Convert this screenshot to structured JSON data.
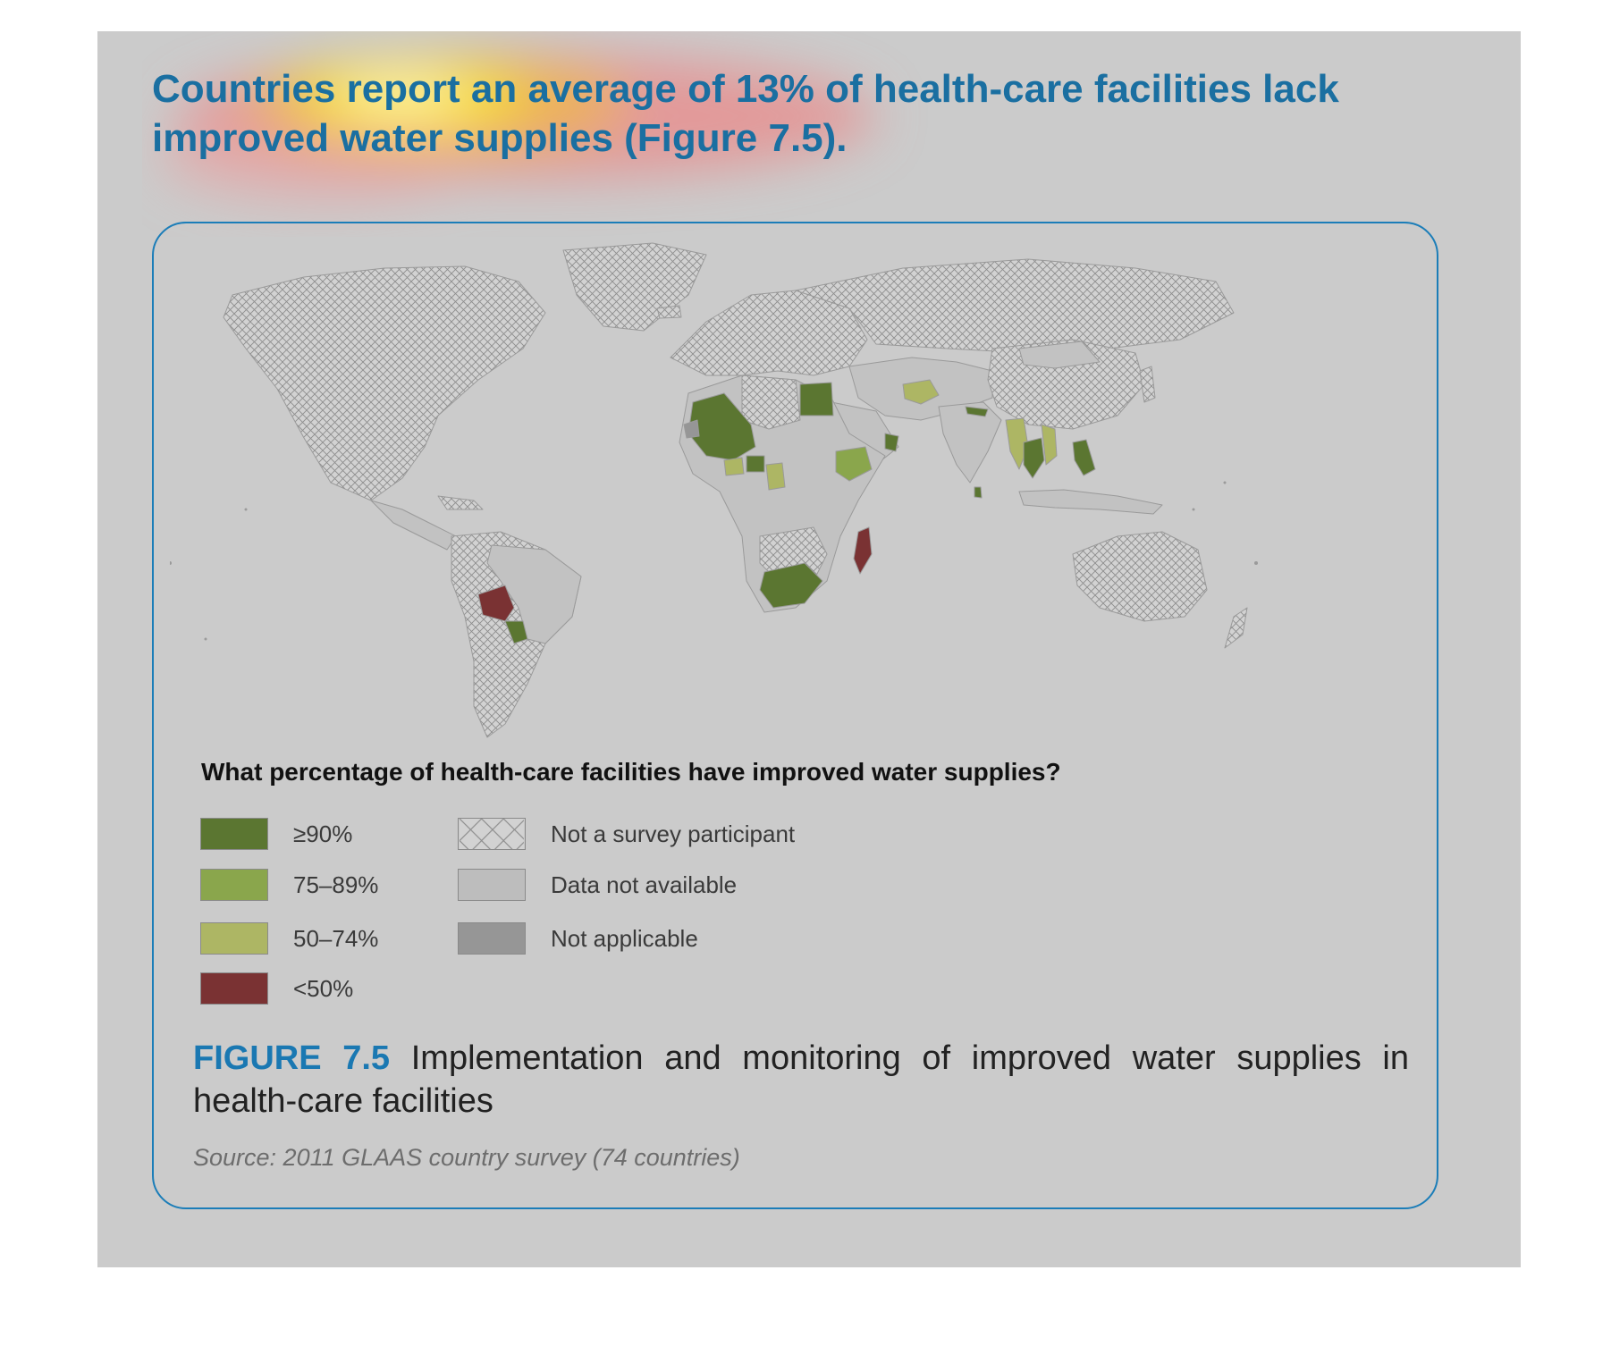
{
  "headline": "Countries report an average of 13% of health-care facilities lack improved water supplies (Figure 7.5).",
  "legend": {
    "title": "What percentage of health-care facilities have improved water supplies?",
    "items": [
      {
        "label": "≥90%",
        "color": "#5b7631",
        "pattern": "solid"
      },
      {
        "label": "75–89%",
        "color": "#8aa64c",
        "pattern": "solid"
      },
      {
        "label": "50–74%",
        "color": "#adb664",
        "pattern": "solid"
      },
      {
        "label": "<50%",
        "color": "#7a3233",
        "pattern": "solid"
      },
      {
        "label": "Not a survey participant",
        "color": "#cfcfcf",
        "pattern": "crosshatch"
      },
      {
        "label": "Data not available",
        "color": "#bdbdbd",
        "pattern": "solid"
      },
      {
        "label": "Not applicable",
        "color": "#969696",
        "pattern": "solid"
      }
    ]
  },
  "figure": {
    "label": "FIGURE 7.5",
    "caption": "Implementation and monitoring of improved water supplies in health-care facilities",
    "source": "Source: 2011 GLAAS country survey (74 countries)"
  },
  "colors": {
    "panel_background": "#cbcbcb",
    "frame_border": "#1b7db8",
    "headline": "#1a6fa1",
    "figure_label": "#1a78b2"
  }
}
